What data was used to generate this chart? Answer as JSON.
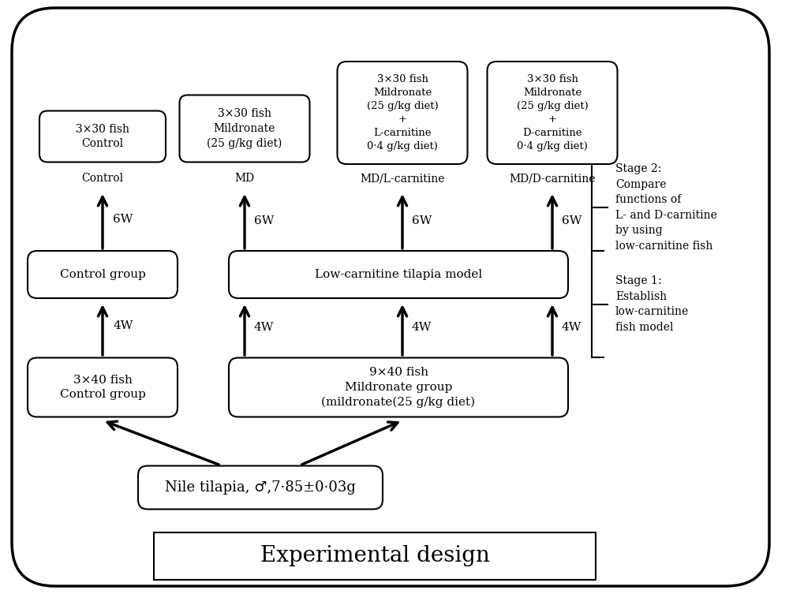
{
  "title": "Experimental design",
  "bg_color": "#ffffff",
  "fig_width": 10.0,
  "fig_height": 7.53,
  "stage1_text": "Stage 1:\nEstablish\nlow-carnitine\nfish model",
  "stage2_text": "Stage 2:\nCompare\nfunctions of\nL- and D-carnitine\nby using\nlow-carnitine fish",
  "tilapia_text": "Nile tilapia, ♂,7·85±0·03g",
  "control_group1_text": "3×40 fish\nControl group",
  "mildronate_group_text": "9×40 fish\nMildronate group\n(mildronate(25 g/kg diet)",
  "control_group2_text": "Control group",
  "low_carnitine_text": "Low-carnitine tilapia model",
  "control_label": "Control",
  "md_label": "MD",
  "mdl_label": "MD/L-carnitine",
  "mdd_label": "MD/D-carnitine",
  "control_final_text": "3×30 fish\nControl",
  "md_final_text": "3×30 fish\nMildronate\n(25 g/kg diet)",
  "mdl_final_text": "3×30 fish\nMildronate\n(25 g/kg diet)\n+\nL-carnitine\n0·4 g/kg diet)",
  "mdd_final_text": "3×30 fish\nMildronate\n(25 g/kg diet)\n+\nD-carnitine\n0·4 g/kg diet)"
}
